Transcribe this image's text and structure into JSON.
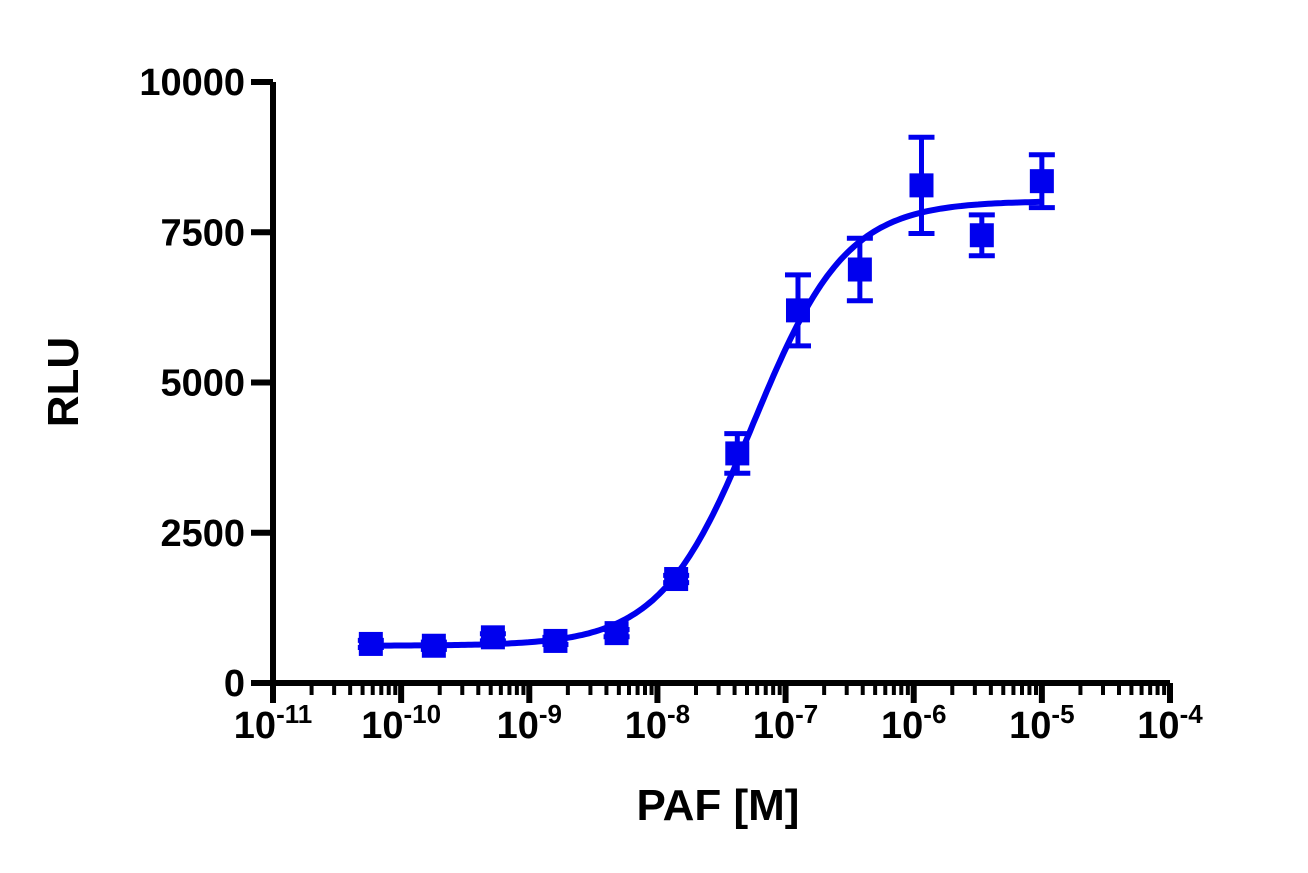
{
  "chart_data": {
    "type": "scatter",
    "title": "",
    "xlabel": "PAF [M]",
    "ylabel": "RLU",
    "x_scale": "log10",
    "xlim": [
      1e-11,
      0.0001
    ],
    "ylim": [
      0,
      10000
    ],
    "x_tick_labels": [
      {
        "base": "10",
        "exp": "-11"
      },
      {
        "base": "10",
        "exp": "-10"
      },
      {
        "base": "10",
        "exp": "-9"
      },
      {
        "base": "10",
        "exp": "-8"
      },
      {
        "base": "10",
        "exp": "-7"
      },
      {
        "base": "10",
        "exp": "-6"
      },
      {
        "base": "10",
        "exp": "-5"
      },
      {
        "base": "10",
        "exp": "-4"
      }
    ],
    "y_ticks": [
      0,
      2500,
      5000,
      7500,
      10000
    ],
    "y_tick_labels": [
      "0",
      "2500",
      "5000",
      "7500",
      "10000"
    ],
    "grid": false,
    "color": "#0000ee",
    "series": [
      {
        "marker": "square",
        "points": [
          {
            "x": 5.8e-11,
            "y": 650,
            "err": 60
          },
          {
            "x": 1.8e-10,
            "y": 620,
            "err": 60
          },
          {
            "x": 5.2e-10,
            "y": 760,
            "err": 60
          },
          {
            "x": 1.6e-09,
            "y": 700,
            "err": 60
          },
          {
            "x": 4.8e-09,
            "y": 830,
            "err": 60
          },
          {
            "x": 1.4e-08,
            "y": 1730,
            "err": 60
          },
          {
            "x": 4.2e-08,
            "y": 3820,
            "err": 330
          },
          {
            "x": 1.25e-07,
            "y": 6200,
            "err": 590
          },
          {
            "x": 3.8e-07,
            "y": 6880,
            "err": 520
          },
          {
            "x": 1.15e-06,
            "y": 8280,
            "err": 800
          },
          {
            "x": 3.4e-06,
            "y": 7450,
            "err": 340
          },
          {
            "x": 1e-05,
            "y": 8350,
            "err": 440
          }
        ]
      }
    ],
    "fit": {
      "type": "sigmoidal dose-response",
      "bottom": 620,
      "top": 8020,
      "ec50": 5.6e-08,
      "hill": 1.2
    }
  }
}
